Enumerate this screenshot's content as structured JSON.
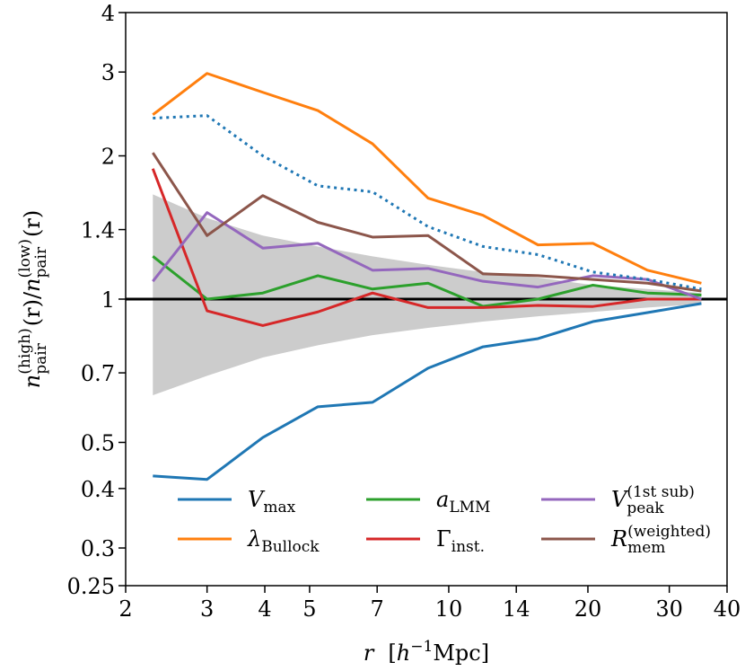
{
  "chart_data": {
    "type": "line",
    "xlabel": [
      "r",
      "[",
      "h",
      "−1",
      "Mpc]"
    ],
    "ylabel": [
      "n",
      "(high)",
      "pair",
      "(r)/",
      "n",
      "(low)",
      "pair",
      "(r)"
    ],
    "x": [
      2.29,
      3.0,
      3.96,
      5.21,
      6.84,
      9.02,
      11.86,
      15.6,
      20.5,
      26.9,
      35.2
    ],
    "xlog": true,
    "ylog": true,
    "xlim": [
      2,
      40
    ],
    "xticks": [
      2,
      3,
      4,
      5,
      7,
      10,
      14,
      20,
      30,
      40
    ],
    "ylim": [
      0.25,
      4
    ],
    "yticks": [
      0.25,
      0.3,
      0.4,
      0.5,
      0.7,
      1,
      1.4,
      2,
      3,
      4
    ],
    "reference_line": 1,
    "band": {
      "color": "#cccccc",
      "upper": [
        1.66,
        1.48,
        1.36,
        1.29,
        1.23,
        1.18,
        1.14,
        1.11,
        1.07,
        1.05,
        1.03
      ],
      "lower": [
        0.628,
        0.69,
        0.754,
        0.8,
        0.84,
        0.87,
        0.897,
        0.92,
        0.94,
        0.96,
        0.977
      ]
    },
    "series": [
      {
        "name": {
          "base": "V",
          "sub": "max"
        },
        "color": "#1f77b4",
        "values": [
          0.425,
          0.418,
          0.512,
          0.594,
          0.607,
          0.716,
          0.794,
          0.826,
          0.897,
          0.937,
          0.979
        ]
      },
      {
        "name": {
          "base": "λ",
          "sub": "Bullock"
        },
        "color": "#ff7f0e",
        "values": [
          2.44,
          2.98,
          2.72,
          2.49,
          2.12,
          1.63,
          1.5,
          1.3,
          1.31,
          1.15,
          1.08
        ]
      },
      {
        "name": {
          "base": "a",
          "sub": "LMM"
        },
        "color": "#2ca02c",
        "values": [
          1.23,
          1.0,
          1.03,
          1.12,
          1.05,
          1.08,
          0.966,
          1.0,
          1.07,
          1.03,
          1.02
        ]
      },
      {
        "name": {
          "base": "Γ",
          "sub": "inst."
        },
        "color": "#d62728",
        "values": [
          1.88,
          0.945,
          0.88,
          0.94,
          1.03,
          0.96,
          0.96,
          0.97,
          0.965,
          1.0,
          1.0
        ]
      },
      {
        "name": {
          "base": "V",
          "sub": "peak",
          "sup": "(1st sub)"
        },
        "color": "#9467bd",
        "values": [
          1.09,
          1.52,
          1.28,
          1.31,
          1.15,
          1.16,
          1.09,
          1.06,
          1.12,
          1.1,
          1.0
        ]
      },
      {
        "name": {
          "base": "R",
          "sub": "mem",
          "sup": "(weighted)"
        },
        "color": "#8c564b",
        "values": [
          2.03,
          1.36,
          1.65,
          1.45,
          1.35,
          1.36,
          1.13,
          1.12,
          1.1,
          1.08,
          1.04
        ]
      },
      {
        "color": "#1f77b4",
        "style": "dotted",
        "values": [
          2.4,
          2.43,
          2.0,
          1.73,
          1.68,
          1.42,
          1.29,
          1.24,
          1.14,
          1.1,
          1.05
        ]
      }
    ],
    "legend": {
      "columns": 3,
      "loc": "lower center"
    }
  }
}
